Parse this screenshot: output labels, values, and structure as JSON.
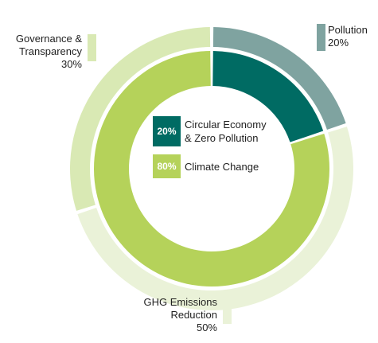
{
  "chart_data": {
    "type": "pie",
    "inner_ring": {
      "series": [
        {
          "name": "Circular Economy & Zero Pollution",
          "value": 20,
          "label": "20%",
          "color": "#006b63"
        },
        {
          "name": "Climate Change",
          "value": 80,
          "label": "80%",
          "color": "#b5d25a"
        }
      ]
    },
    "outer_ring": {
      "series": [
        {
          "name": "Pollution",
          "value": 20,
          "label": "20%",
          "color": "#7fa3a0"
        },
        {
          "name": "GHG Emissions Reduction",
          "value": 50,
          "label": "50%",
          "color": "#eaf2d8"
        },
        {
          "name": "Governance & Transparency",
          "value": 30,
          "label": "30%",
          "color": "#d9e9b4"
        }
      ]
    },
    "legend": {
      "position": "center",
      "items": [
        {
          "pct": "20%",
          "line1": "Circular Economy",
          "line2": "& Zero Pollution",
          "color": "#006b63"
        },
        {
          "pct": "80%",
          "line1": "Climate Change",
          "line2": "",
          "color": "#b5d25a"
        }
      ]
    },
    "outer_labels": [
      {
        "lines": [
          "Pollution",
          "20%"
        ],
        "color": "#7fa3a0"
      },
      {
        "lines": [
          "GHG Emissions",
          "Reduction",
          "50%"
        ],
        "color": "#eaf2d8"
      },
      {
        "lines": [
          "Governance &",
          "Transparency",
          "30%"
        ],
        "color": "#d9e9b4"
      }
    ]
  }
}
